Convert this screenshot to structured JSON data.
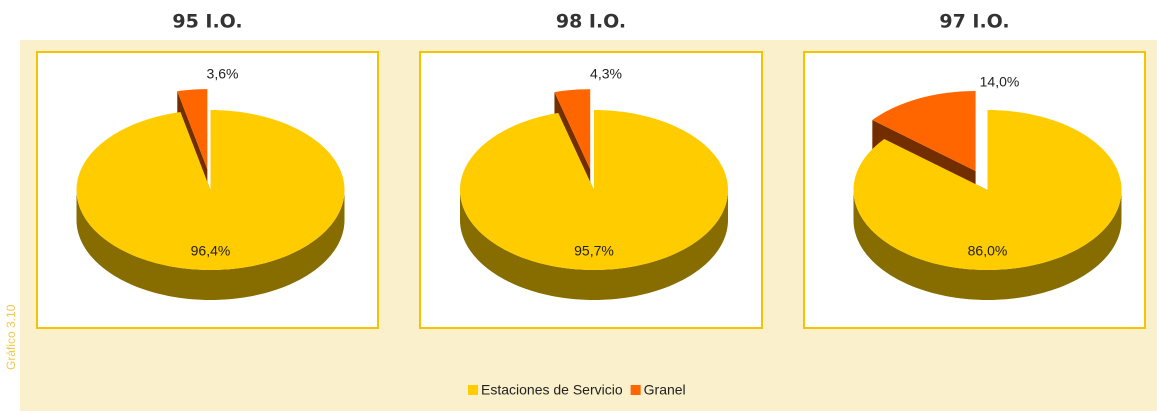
{
  "figure_label": "Gráfico 3.10",
  "legend_position": "bottom",
  "chart_data": [
    {
      "type": "pie",
      "title": "95 I.O.",
      "categories": [
        "Estaciones de Servicio",
        "Granel"
      ],
      "values": [
        96.4,
        3.6
      ],
      "value_labels": [
        "96,4%",
        "3,6%"
      ],
      "colors": [
        "#ffcc00",
        "#ff6600"
      ]
    },
    {
      "type": "pie",
      "title": "98 I.O.",
      "categories": [
        "Estaciones de Servicio",
        "Granel"
      ],
      "values": [
        95.7,
        4.3
      ],
      "value_labels": [
        "95,7%",
        "4,3%"
      ],
      "colors": [
        "#ffcc00",
        "#ff6600"
      ]
    },
    {
      "type": "pie",
      "title": "97 I.O.",
      "categories": [
        "Estaciones de Servicio",
        "Granel"
      ],
      "values": [
        86.0,
        14.0
      ],
      "value_labels": [
        "86,0%",
        "14,0%"
      ],
      "colors": [
        "#ffcc00",
        "#ff6600"
      ]
    }
  ]
}
